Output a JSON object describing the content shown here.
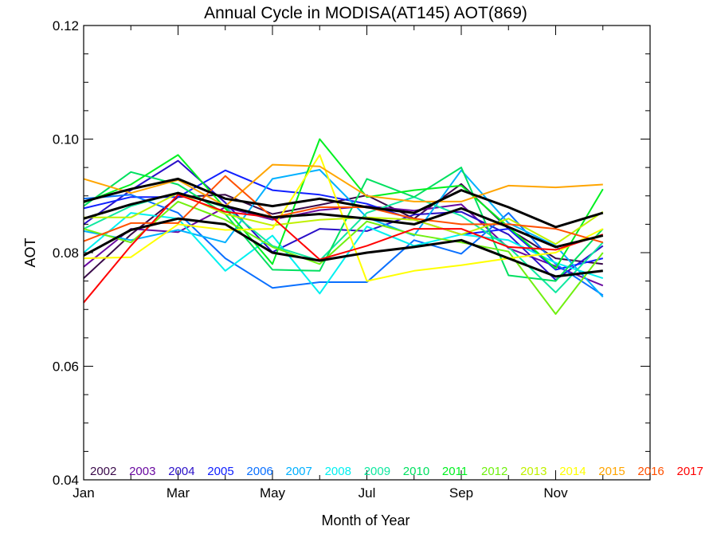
{
  "chart_data": {
    "type": "line",
    "title": "Annual Cycle in MODISA(AT145) AOT(869)",
    "xlabel": "Month of Year",
    "ylabel": "AOT",
    "xlim": [
      1,
      13
    ],
    "ylim": [
      0.04,
      0.12
    ],
    "x_ticks": [
      {
        "value": 1,
        "label": "Jan"
      },
      {
        "value": 3,
        "label": "Mar"
      },
      {
        "value": 5,
        "label": "May"
      },
      {
        "value": 7,
        "label": "Jul"
      },
      {
        "value": 9,
        "label": "Sep"
      },
      {
        "value": 11,
        "label": "Nov"
      }
    ],
    "y_ticks": [
      {
        "value": 0.04,
        "label": "0.04"
      },
      {
        "value": 0.06,
        "label": "0.06"
      },
      {
        "value": 0.08,
        "label": "0.08"
      },
      {
        "value": 0.1,
        "label": "0.10"
      },
      {
        "value": 0.12,
        "label": "0.12"
      }
    ],
    "legend_position": "bottom",
    "x": [
      1,
      2,
      3,
      4,
      5,
      6,
      7,
      8,
      9,
      10,
      11,
      12
    ],
    "series": [
      {
        "name": "2002",
        "color": "#3a0a4a",
        "values": [
          0.0755,
          0.0832,
          0.0898,
          0.0902,
          0.0868,
          0.0884,
          0.0901,
          0.086,
          0.0921,
          0.0842,
          0.079,
          0.078
        ]
      },
      {
        "name": "2003",
        "color": "#6a0aa0",
        "values": [
          0.0775,
          0.0842,
          0.0836,
          0.088,
          0.0858,
          0.0875,
          0.0882,
          0.0874,
          0.0885,
          0.0808,
          0.0776,
          0.0742
        ]
      },
      {
        "name": "2004",
        "color": "#2a10c8",
        "values": [
          0.085,
          0.091,
          0.0962,
          0.0888,
          0.0801,
          0.0842,
          0.0838,
          0.0867,
          0.0872,
          0.0832,
          0.0752,
          0.0812
        ]
      },
      {
        "name": "2005",
        "color": "#1020ff",
        "values": [
          0.0878,
          0.0898,
          0.0898,
          0.0945,
          0.091,
          0.0902,
          0.0886,
          0.0858,
          0.0832,
          0.0842,
          0.077,
          0.079
        ]
      },
      {
        "name": "2006",
        "color": "#0a70ff",
        "values": [
          0.0895,
          0.0902,
          0.087,
          0.079,
          0.0738,
          0.0748,
          0.0748,
          0.0822,
          0.0798,
          0.087,
          0.078,
          0.0725
        ]
      },
      {
        "name": "2007",
        "color": "#00b0ff",
        "values": [
          0.0838,
          0.0822,
          0.084,
          0.0818,
          0.093,
          0.0946,
          0.0862,
          0.083,
          0.0945,
          0.0852,
          0.0812,
          0.0722
        ]
      },
      {
        "name": "2008",
        "color": "#00f0f0",
        "values": [
          0.08,
          0.087,
          0.086,
          0.0768,
          0.083,
          0.0728,
          0.0846,
          0.0812,
          0.0832,
          0.0822,
          0.0782,
          0.0755
        ]
      },
      {
        "name": "2009",
        "color": "#10e8a0",
        "values": [
          0.0842,
          0.0882,
          0.0906,
          0.088,
          0.0812,
          0.0786,
          0.087,
          0.0898,
          0.0865,
          0.081,
          0.073,
          0.0818
        ]
      },
      {
        "name": "2010",
        "color": "#00e060",
        "values": [
          0.0882,
          0.0942,
          0.092,
          0.0868,
          0.077,
          0.0768,
          0.093,
          0.0898,
          0.095,
          0.076,
          0.075,
          0.0842
        ]
      },
      {
        "name": "2011",
        "color": "#00f020",
        "values": [
          0.0888,
          0.092,
          0.0972,
          0.0878,
          0.078,
          0.1,
          0.0898,
          0.091,
          0.0918,
          0.0845,
          0.0772,
          0.0912
        ]
      },
      {
        "name": "2012",
        "color": "#70f010",
        "values": [
          0.0842,
          0.0818,
          0.089,
          0.0858,
          0.081,
          0.078,
          0.0855,
          0.0832,
          0.0818,
          0.0802,
          0.0692,
          0.08
        ]
      },
      {
        "name": "2013",
        "color": "#c0f000",
        "values": [
          0.0862,
          0.0862,
          0.0905,
          0.0868,
          0.0848,
          0.0858,
          0.0862,
          0.0858,
          0.0832,
          0.086,
          0.0815,
          0.0872
        ]
      },
      {
        "name": "2014",
        "color": "#ffff00",
        "values": [
          0.079,
          0.0792,
          0.085,
          0.084,
          0.0842,
          0.0972,
          0.075,
          0.0768,
          0.0778,
          0.079,
          0.08,
          0.0842
        ]
      },
      {
        "name": "2015",
        "color": "#ffa500",
        "values": [
          0.093,
          0.0905,
          0.0928,
          0.0882,
          0.0955,
          0.0952,
          0.09,
          0.089,
          0.089,
          0.0918,
          0.0915,
          0.092
        ]
      },
      {
        "name": "2016",
        "color": "#ff5000",
        "values": [
          0.082,
          0.0852,
          0.0852,
          0.0935,
          0.0862,
          0.088,
          0.088,
          0.086,
          0.085,
          0.085,
          0.0842,
          0.0818
        ]
      },
      {
        "name": "2017",
        "color": "#ff0000",
        "values": [
          0.0712,
          0.0812,
          0.0902,
          0.0872,
          0.0862,
          0.0788,
          0.0812,
          0.0842,
          0.0842,
          0.081,
          0.0805,
          0.0832
        ]
      }
    ],
    "summary_lines": [
      {
        "color": "#000000",
        "values": [
          0.089,
          0.0912,
          0.093,
          0.0895,
          0.0882,
          0.0895,
          0.088,
          0.087,
          0.091,
          0.088,
          0.0845,
          0.087
        ]
      },
      {
        "color": "#000000",
        "values": [
          0.086,
          0.0885,
          0.0905,
          0.0882,
          0.0862,
          0.0868,
          0.086,
          0.085,
          0.0878,
          0.0845,
          0.081,
          0.083
        ]
      },
      {
        "color": "#000000",
        "values": [
          0.0795,
          0.084,
          0.086,
          0.085,
          0.08,
          0.0786,
          0.08,
          0.081,
          0.0822,
          0.079,
          0.0758,
          0.0768
        ]
      }
    ]
  }
}
